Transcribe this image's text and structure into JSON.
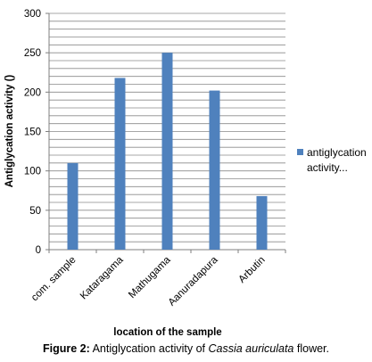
{
  "chart_data": {
    "type": "bar",
    "title": "",
    "xlabel": "location of the sample",
    "ylabel": "Antiglycation activity ()",
    "categories": [
      "com. sample",
      "Kataragama",
      "Mathugama",
      "Aanuradapura",
      "Arbutin"
    ],
    "series": [
      {
        "name": "antiglycation activity...",
        "values": [
          110,
          218,
          250,
          202,
          68
        ]
      }
    ],
    "ylim": [
      0,
      300
    ],
    "yticks": [
      0,
      50,
      100,
      150,
      200,
      250,
      300
    ],
    "bar_color": "#4f81bd",
    "grid": true,
    "legend_position": "right",
    "legend_lines": [
      "antiglycation",
      "activity..."
    ]
  },
  "caption": {
    "label": "Figure 2:",
    "text_before": " Antiglycation activity of ",
    "italic": "Cassia auriculata",
    "text_after": " flower."
  }
}
